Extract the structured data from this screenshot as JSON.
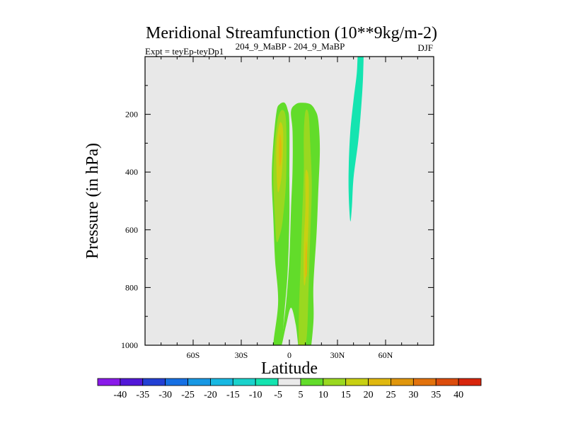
{
  "chart_data": {
    "type": "contour",
    "title": "Meridional Streamfunction (10**9kg/m-2)",
    "subtitle_left": "Expt = teyEp-teyDp1",
    "subtitle_center": "204_9_MaBP - 204_9_MaBP",
    "subtitle_right": "DJF",
    "xlabel": "Latitude",
    "ylabel": "Pressure (in hPa)",
    "xlim": [
      -90,
      90
    ],
    "ylim": [
      1000,
      0
    ],
    "x_ticks": [
      {
        "value": -60,
        "label": "60S"
      },
      {
        "value": -30,
        "label": "30S"
      },
      {
        "value": 0,
        "label": "0"
      },
      {
        "value": 30,
        "label": "30N"
      },
      {
        "value": 60,
        "label": "60N"
      }
    ],
    "y_ticks": [
      {
        "value": 200,
        "label": "200"
      },
      {
        "value": 400,
        "label": "400"
      },
      {
        "value": 600,
        "label": "600"
      },
      {
        "value": 800,
        "label": "800"
      },
      {
        "value": 1000,
        "label": "1000"
      }
    ],
    "colorbar": {
      "levels": [
        -40,
        -35,
        -30,
        -25,
        -20,
        -15,
        -10,
        -5,
        5,
        10,
        15,
        20,
        25,
        30,
        35,
        40
      ],
      "colors": [
        "#8a1aea",
        "#5218d8",
        "#2340d4",
        "#1670e4",
        "#1898e4",
        "#18b8e2",
        "#1ad2cc",
        "#14e4b0",
        "#eaeaea",
        "#62dc2a",
        "#9ad820",
        "#c8d012",
        "#e0b80e",
        "#e0960c",
        "#e2720c",
        "#dc4c0c",
        "#d8260c"
      ]
    },
    "background_color": "#e8e8e8",
    "contour_regions": [
      {
        "name": "southern-cell-outer",
        "fill_index": 9,
        "points": [
          [
            -10,
            1000
          ],
          [
            -7,
            850
          ],
          [
            -9,
            700
          ],
          [
            -10,
            560
          ],
          [
            -11,
            420
          ],
          [
            -10,
            300
          ],
          [
            -8,
            190
          ],
          [
            -6,
            165
          ],
          [
            -3,
            160
          ],
          [
            -1,
            185
          ],
          [
            0,
            230
          ],
          [
            0,
            420
          ],
          [
            0,
            560
          ],
          [
            -1,
            740
          ],
          [
            -3,
            880
          ],
          [
            -5,
            1000
          ],
          [
            -8,
            1050
          ]
        ]
      },
      {
        "name": "southern-cell-inner",
        "fill_index": 10,
        "points": [
          [
            -8,
            640
          ],
          [
            -9,
            560
          ],
          [
            -10,
            420
          ],
          [
            -9,
            300
          ],
          [
            -7,
            210
          ],
          [
            -4,
            185
          ],
          [
            -2,
            230
          ],
          [
            -2,
            420
          ],
          [
            -4,
            560
          ],
          [
            -6,
            620
          ]
        ]
      },
      {
        "name": "southern-cell-core",
        "fill_index": 11,
        "points": [
          [
            -7,
            470
          ],
          [
            -8,
            400
          ],
          [
            -8,
            300
          ],
          [
            -6,
            230
          ],
          [
            -4,
            250
          ],
          [
            -4,
            330
          ],
          [
            -5,
            420
          ]
        ]
      },
      {
        "name": "southern-cell-max",
        "fill_index": 12,
        "points": [
          [
            -6,
            380
          ],
          [
            -6.5,
            330
          ],
          [
            -6,
            270
          ],
          [
            -5,
            300
          ],
          [
            -5,
            350
          ]
        ]
      },
      {
        "name": "northern-cell-outer",
        "fill_index": 9,
        "points": [
          [
            -5,
            1000
          ],
          [
            -2,
            850
          ],
          [
            0,
            700
          ],
          [
            1,
            530
          ],
          [
            2,
            390
          ],
          [
            2,
            260
          ],
          [
            1,
            190
          ],
          [
            4,
            165
          ],
          [
            8,
            160
          ],
          [
            13,
            165
          ],
          [
            16,
            185
          ],
          [
            18,
            220
          ],
          [
            19,
            320
          ],
          [
            18,
            470
          ],
          [
            17,
            610
          ],
          [
            15,
            790
          ],
          [
            15,
            920
          ],
          [
            12,
            1050
          ],
          [
            7,
            1050
          ],
          [
            4,
            930
          ],
          [
            1,
            870
          ],
          [
            -2,
            930
          ]
        ]
      },
      {
        "name": "northern-cell-inner",
        "fill_index": 10,
        "points": [
          [
            6,
            1020
          ],
          [
            6,
            880
          ],
          [
            7,
            720
          ],
          [
            8,
            550
          ],
          [
            9,
            400
          ],
          [
            9,
            270
          ],
          [
            10,
            190
          ],
          [
            12,
            200
          ],
          [
            13,
            300
          ],
          [
            14,
            450
          ],
          [
            13,
            620
          ],
          [
            12,
            800
          ],
          [
            11,
            960
          ],
          [
            9,
            1020
          ]
        ]
      },
      {
        "name": "northern-cell-core",
        "fill_index": 11,
        "points": [
          [
            9,
            780
          ],
          [
            9,
            650
          ],
          [
            10,
            520
          ],
          [
            10,
            400
          ],
          [
            12,
            420
          ],
          [
            12,
            560
          ],
          [
            11,
            700
          ],
          [
            10,
            780
          ]
        ]
      },
      {
        "name": "northern-cell-max",
        "fill_index": 12,
        "points": [
          [
            10,
            760
          ],
          [
            10,
            690
          ],
          [
            10.5,
            640
          ],
          [
            11,
            680
          ],
          [
            11,
            750
          ]
        ]
      },
      {
        "name": "northern-jet-negative",
        "fill_index": 7,
        "points": [
          [
            38,
            570
          ],
          [
            37,
            480
          ],
          [
            37,
            380
          ],
          [
            38,
            260
          ],
          [
            40,
            150
          ],
          [
            42,
            60
          ],
          [
            43,
            -20
          ],
          [
            46,
            -20
          ],
          [
            46,
            60
          ],
          [
            45,
            160
          ],
          [
            43,
            290
          ],
          [
            40,
            420
          ],
          [
            39,
            520
          ]
        ]
      }
    ]
  }
}
